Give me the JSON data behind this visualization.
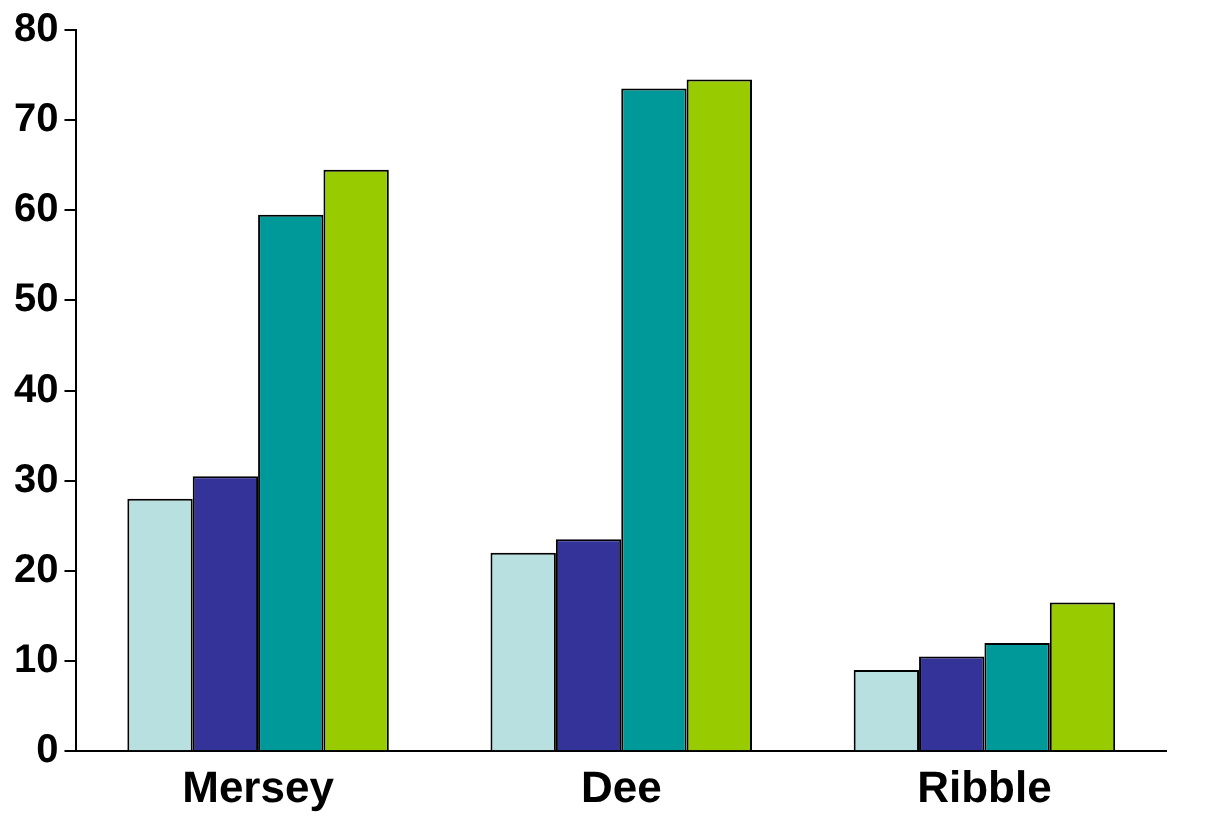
{
  "chart_data": {
    "type": "bar",
    "categories": [
      "Mersey",
      "Dee",
      "Ribble"
    ],
    "series": [
      {
        "color": "#b8e0e0",
        "values": [
          28,
          22,
          9
        ]
      },
      {
        "color": "#333399",
        "values": [
          30.5,
          23.5,
          10.5
        ]
      },
      {
        "color": "#009999",
        "values": [
          59.5,
          73.5,
          12
        ]
      },
      {
        "color": "#99cc00",
        "values": [
          64.5,
          74.5,
          16.5
        ]
      }
    ],
    "ylim": [
      0,
      80
    ],
    "yticks": [
      0,
      10,
      20,
      30,
      40,
      50,
      60,
      70,
      80
    ],
    "grid": false,
    "legend": false
  }
}
